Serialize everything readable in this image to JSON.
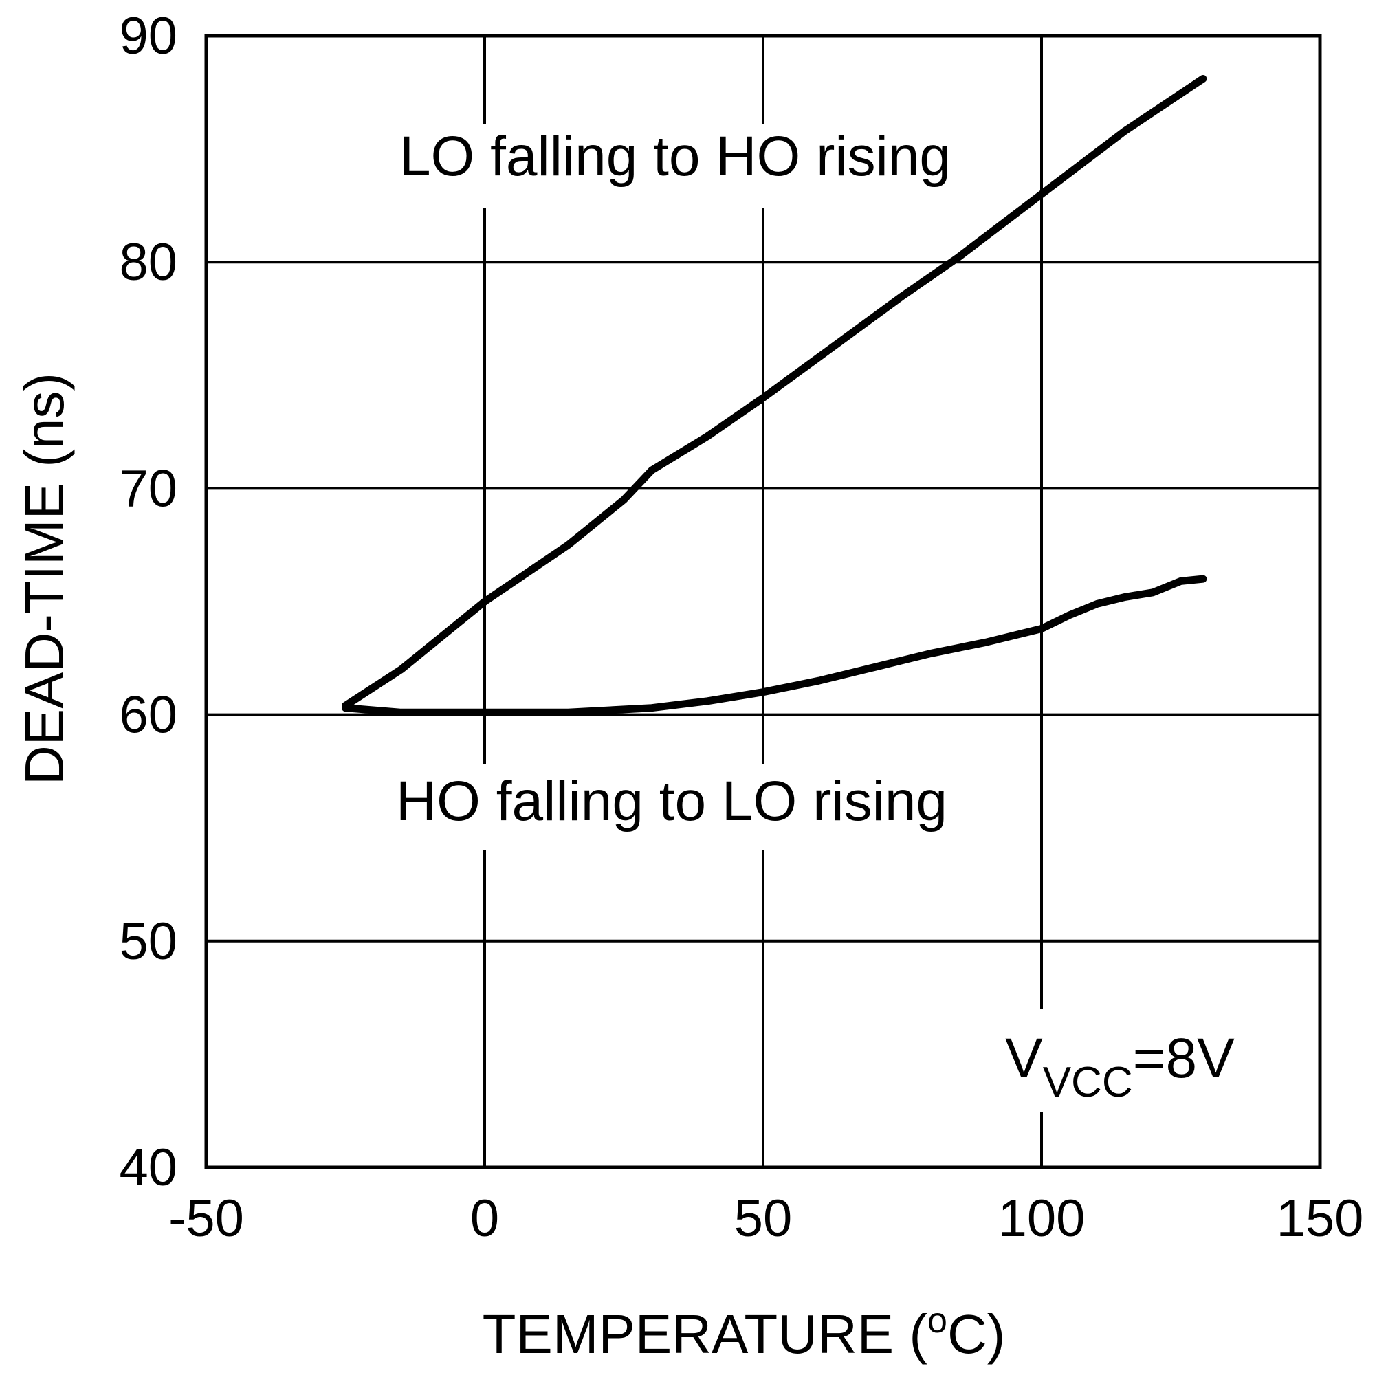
{
  "chart_data": {
    "type": "line",
    "xlabel_main": "TEMPERATURE (",
    "xlabel_sup": "o",
    "xlabel_tail": "C)",
    "ylabel": "DEAD-TIME (ns)",
    "xlim": [
      -50,
      150
    ],
    "ylim": [
      40,
      90
    ],
    "xticks": [
      -50,
      0,
      50,
      100,
      150
    ],
    "yticks": [
      40,
      50,
      60,
      70,
      80,
      90
    ],
    "grid": true,
    "series": [
      {
        "name": "LO falling to HO rising",
        "points": [
          [
            -25,
            60.4
          ],
          [
            -15,
            62.0
          ],
          [
            0,
            65.0
          ],
          [
            15,
            67.5
          ],
          [
            25,
            69.5
          ],
          [
            30,
            70.8
          ],
          [
            40,
            72.3
          ],
          [
            50,
            74.0
          ],
          [
            60,
            75.8
          ],
          [
            75,
            78.5
          ],
          [
            85,
            80.2
          ],
          [
            100,
            83.0
          ],
          [
            115,
            85.8
          ],
          [
            129,
            88.1
          ]
        ]
      },
      {
        "name": "HO falling to LO rising",
        "points": [
          [
            -25,
            60.3
          ],
          [
            -15,
            60.1
          ],
          [
            0,
            60.1
          ],
          [
            15,
            60.1
          ],
          [
            30,
            60.3
          ],
          [
            40,
            60.6
          ],
          [
            50,
            61.0
          ],
          [
            60,
            61.5
          ],
          [
            70,
            62.1
          ],
          [
            80,
            62.7
          ],
          [
            90,
            63.2
          ],
          [
            100,
            63.8
          ],
          [
            105,
            64.4
          ],
          [
            110,
            64.9
          ],
          [
            115,
            65.2
          ],
          [
            120,
            65.4
          ],
          [
            125,
            65.9
          ],
          [
            129,
            66.0
          ]
        ]
      }
    ],
    "labels": {
      "upper": "LO falling to HO rising",
      "lower": "HO falling to LO rising",
      "vcc_main": "V",
      "vcc_sub": "VCC",
      "vcc_value": "=8V"
    }
  }
}
